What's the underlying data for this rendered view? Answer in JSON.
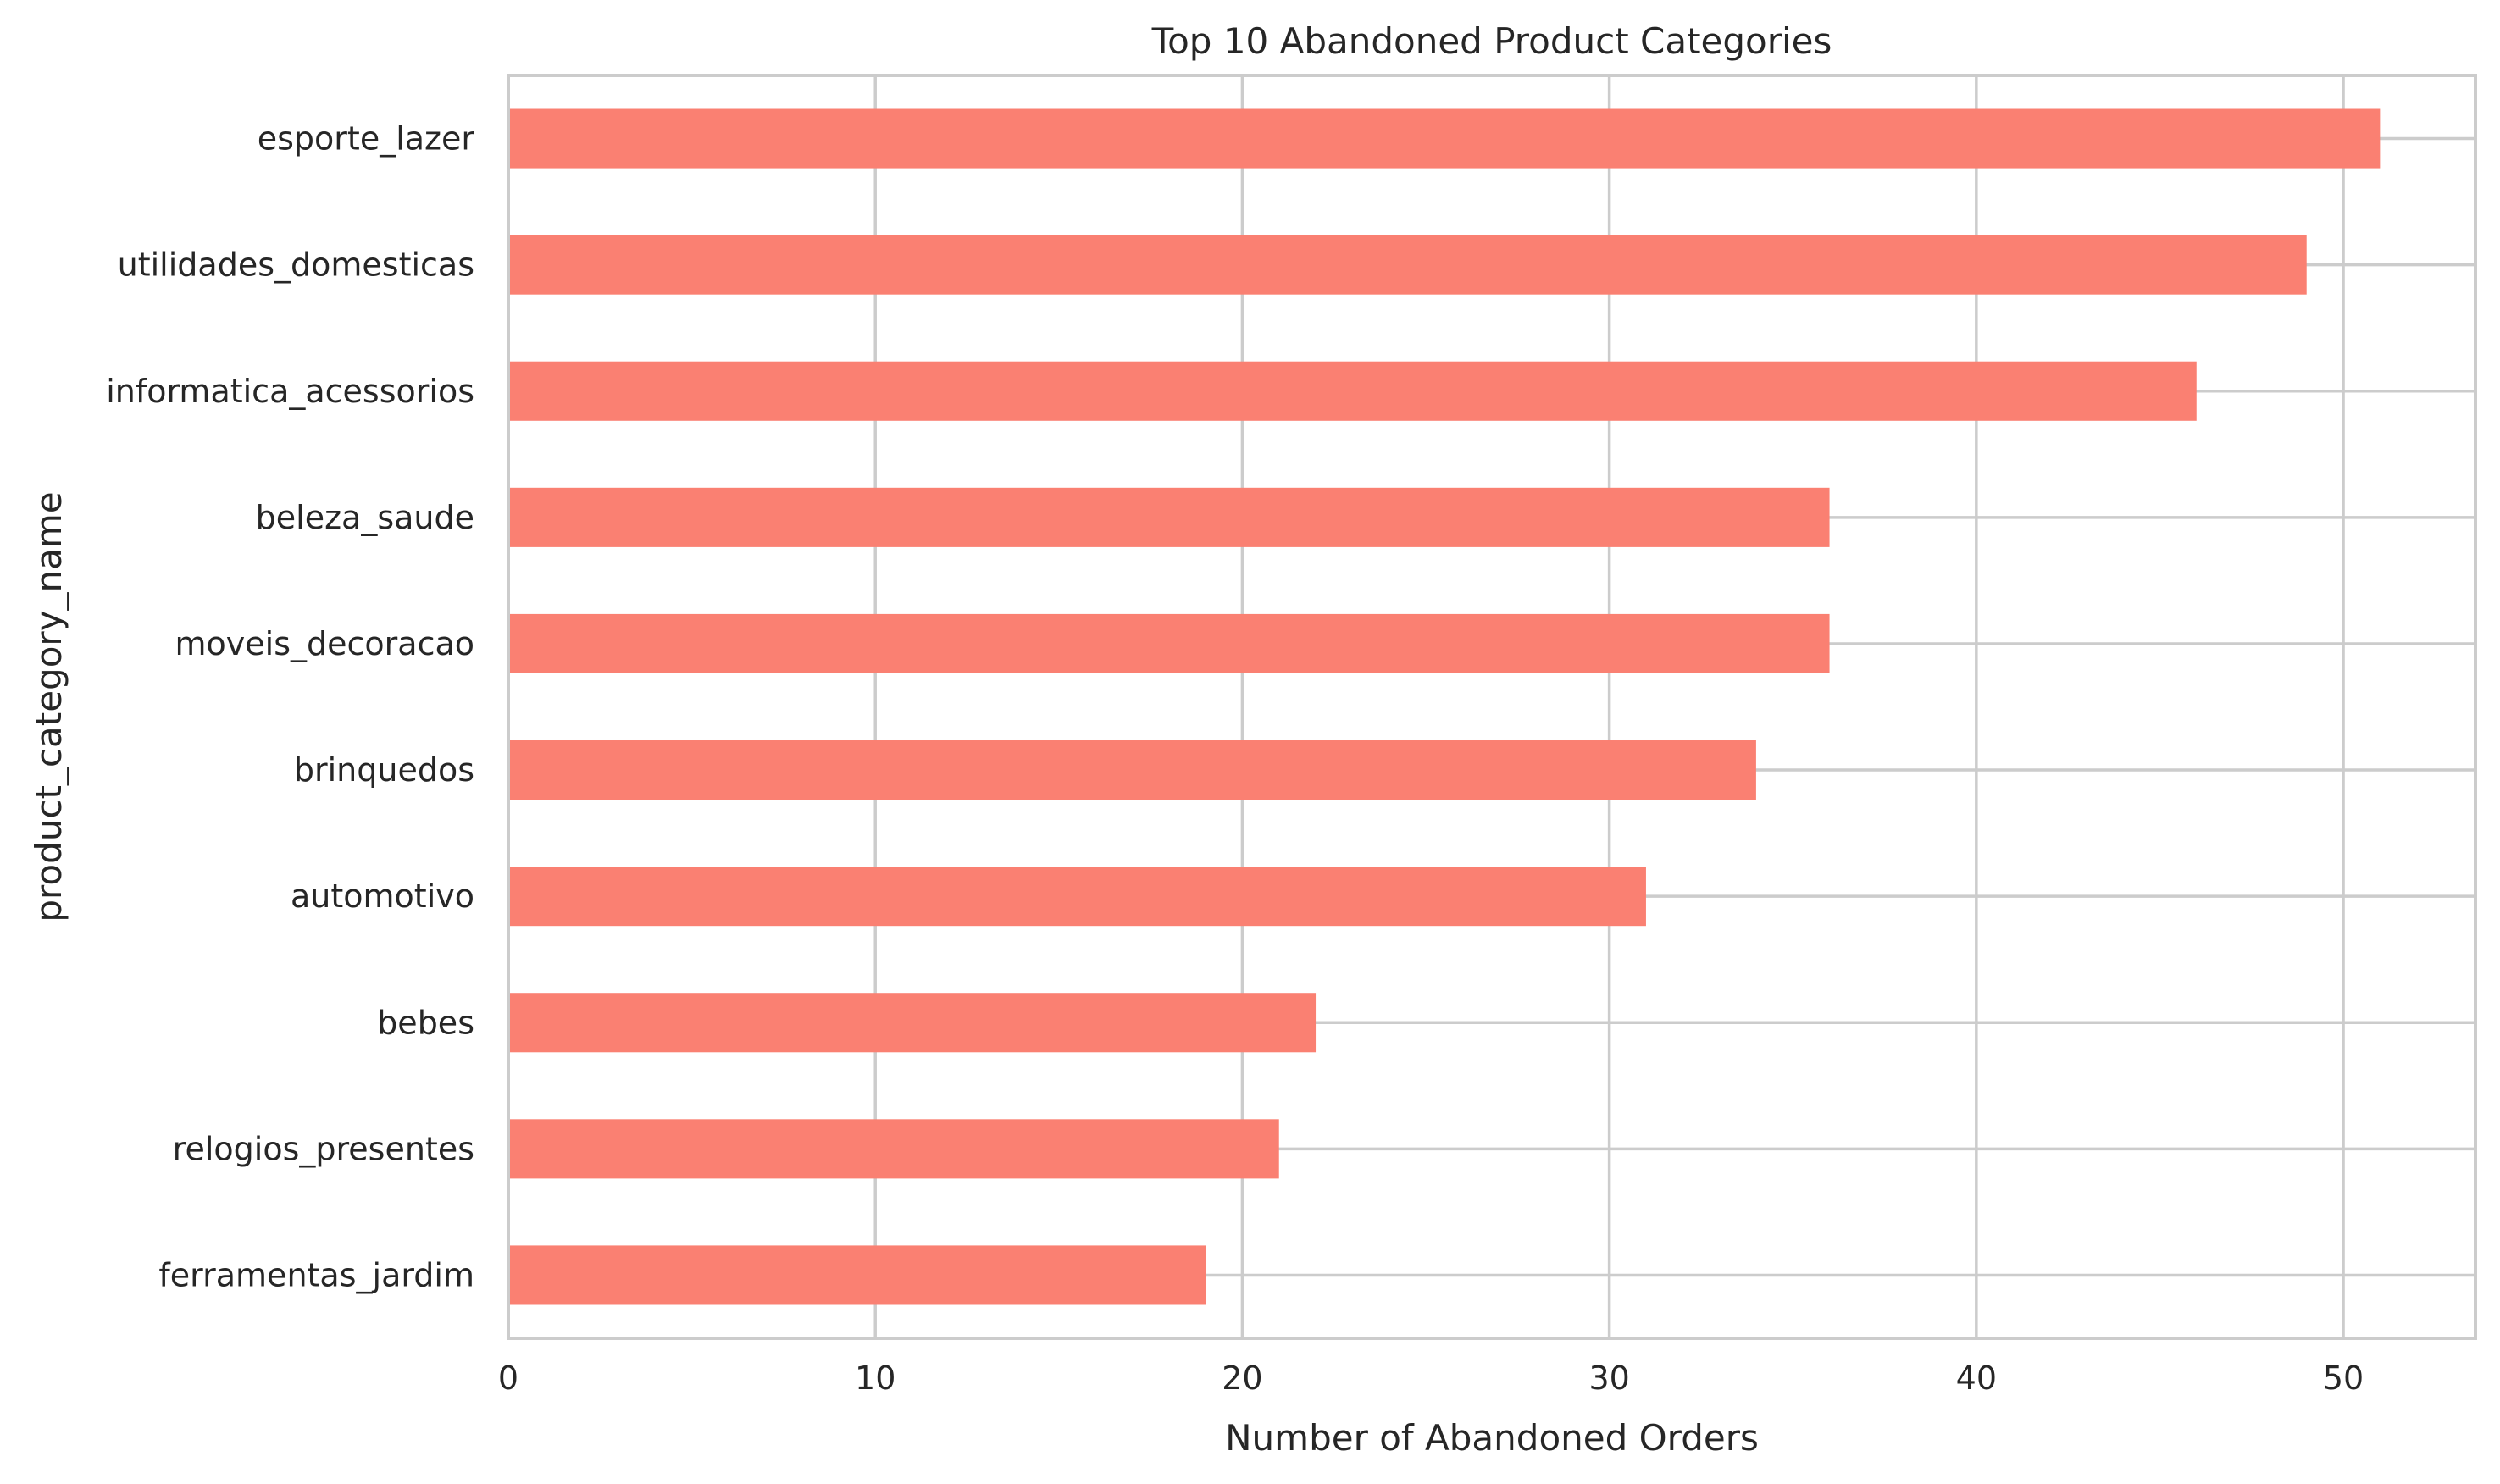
{
  "chart_data": {
    "type": "bar",
    "orientation": "horizontal",
    "title": "Top 10 Abandoned Product Categories",
    "xlabel": "Number of Abandoned Orders",
    "ylabel": "product_category_name",
    "xlim": [
      0,
      53.6
    ],
    "xticks": [
      "0",
      "10",
      "20",
      "30",
      "40",
      "50"
    ],
    "grid": true,
    "bar_color": "#fa8072",
    "categories": [
      "esporte_lazer",
      "utilidades_domesticas",
      "informatica_acessorios",
      "beleza_saude",
      "moveis_decoracao",
      "brinquedos",
      "automotivo",
      "bebes",
      "relogios_presentes",
      "ferramentas_jardim"
    ],
    "values": [
      51,
      49,
      46,
      36,
      36,
      34,
      31,
      22,
      21,
      19
    ]
  }
}
